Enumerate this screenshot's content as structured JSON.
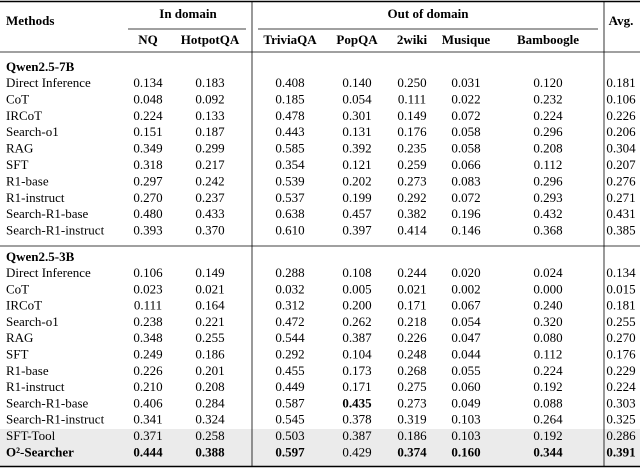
{
  "header": {
    "methods": "Methods",
    "in_domain": "In domain",
    "out_of_domain": "Out of domain",
    "avg": "Avg.",
    "columns": [
      "NQ",
      "HotpotQA",
      "TriviaQA",
      "PopQA",
      "2wiki",
      "Musique",
      "Bamboogle"
    ]
  },
  "sections": [
    {
      "title": "Qwen2.5-7B",
      "rows": [
        {
          "method": "Direct Inference",
          "values": [
            "0.134",
            "0.183",
            "0.408",
            "0.140",
            "0.250",
            "0.031",
            "0.120",
            "0.181"
          ]
        },
        {
          "method": "CoT",
          "values": [
            "0.048",
            "0.092",
            "0.185",
            "0.054",
            "0.111",
            "0.022",
            "0.232",
            "0.106"
          ]
        },
        {
          "method": "IRCoT",
          "values": [
            "0.224",
            "0.133",
            "0.478",
            "0.301",
            "0.149",
            "0.072",
            "0.224",
            "0.226"
          ]
        },
        {
          "method": "Search-o1",
          "values": [
            "0.151",
            "0.187",
            "0.443",
            "0.131",
            "0.176",
            "0.058",
            "0.296",
            "0.206"
          ]
        },
        {
          "method": "RAG",
          "values": [
            "0.349",
            "0.299",
            "0.585",
            "0.392",
            "0.235",
            "0.058",
            "0.208",
            "0.304"
          ]
        },
        {
          "method": "SFT",
          "values": [
            "0.318",
            "0.217",
            "0.354",
            "0.121",
            "0.259",
            "0.066",
            "0.112",
            "0.207"
          ]
        },
        {
          "method": "R1-base",
          "values": [
            "0.297",
            "0.242",
            "0.539",
            "0.202",
            "0.273",
            "0.083",
            "0.296",
            "0.276"
          ]
        },
        {
          "method": "R1-instruct",
          "values": [
            "0.270",
            "0.237",
            "0.537",
            "0.199",
            "0.292",
            "0.072",
            "0.293",
            "0.271"
          ]
        },
        {
          "method": "Search-R1-base",
          "values": [
            "0.480",
            "0.433",
            "0.638",
            "0.457",
            "0.382",
            "0.196",
            "0.432",
            "0.431"
          ]
        },
        {
          "method": "Search-R1-instruct",
          "values": [
            "0.393",
            "0.370",
            "0.610",
            "0.397",
            "0.414",
            "0.146",
            "0.368",
            "0.385"
          ]
        }
      ]
    },
    {
      "title": "Qwen2.5-3B",
      "rows": [
        {
          "method": "Direct Inference",
          "values": [
            "0.106",
            "0.149",
            "0.288",
            "0.108",
            "0.244",
            "0.020",
            "0.024",
            "0.134"
          ]
        },
        {
          "method": "CoT",
          "values": [
            "0.023",
            "0.021",
            "0.032",
            "0.005",
            "0.021",
            "0.002",
            "0.000",
            "0.015"
          ]
        },
        {
          "method": "IRCoT",
          "values": [
            "0.111",
            "0.164",
            "0.312",
            "0.200",
            "0.171",
            "0.067",
            "0.240",
            "0.181"
          ]
        },
        {
          "method": "Search-o1",
          "values": [
            "0.238",
            "0.221",
            "0.472",
            "0.262",
            "0.218",
            "0.054",
            "0.320",
            "0.255"
          ]
        },
        {
          "method": "RAG",
          "values": [
            "0.348",
            "0.255",
            "0.544",
            "0.387",
            "0.226",
            "0.047",
            "0.080",
            "0.270"
          ]
        },
        {
          "method": "SFT",
          "values": [
            "0.249",
            "0.186",
            "0.292",
            "0.104",
            "0.248",
            "0.044",
            "0.112",
            "0.176"
          ]
        },
        {
          "method": "R1-base",
          "values": [
            "0.226",
            "0.201",
            "0.455",
            "0.173",
            "0.268",
            "0.055",
            "0.224",
            "0.229"
          ]
        },
        {
          "method": "R1-instruct",
          "values": [
            "0.210",
            "0.208",
            "0.449",
            "0.171",
            "0.275",
            "0.060",
            "0.192",
            "0.224"
          ]
        },
        {
          "method": "Search-R1-base",
          "values": [
            "0.406",
            "0.284",
            "0.587",
            {
              "text": "0.435",
              "bold": true
            },
            "0.273",
            "0.049",
            "0.088",
            "0.303"
          ]
        },
        {
          "method": "Search-R1-instruct",
          "values": [
            "0.341",
            "0.324",
            "0.545",
            "0.378",
            "0.319",
            "0.103",
            "0.264",
            "0.325"
          ]
        },
        {
          "method": "SFT-Tool",
          "highlight": true,
          "values": [
            "0.371",
            "0.258",
            "0.503",
            "0.387",
            "0.186",
            "0.103",
            "0.192",
            "0.286"
          ]
        },
        {
          "method": "O²-Searcher",
          "highlight": true,
          "bold": true,
          "values": [
            {
              "text": "0.444",
              "bold": true
            },
            {
              "text": "0.388",
              "bold": true
            },
            {
              "text": "0.597",
              "bold": true
            },
            "0.429",
            {
              "text": "0.374",
              "bold": true
            },
            {
              "text": "0.160",
              "bold": true
            },
            {
              "text": "0.344",
              "bold": true
            },
            {
              "text": "0.391",
              "bold": true
            }
          ]
        }
      ]
    }
  ]
}
